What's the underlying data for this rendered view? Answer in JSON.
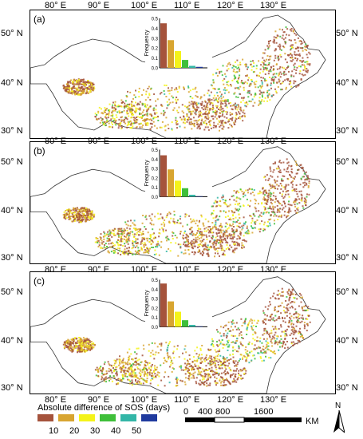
{
  "panels": [
    {
      "label": "(a)",
      "freq": [
        0.45,
        0.28,
        0.17,
        0.08,
        0.02,
        0.01
      ]
    },
    {
      "label": "(b)",
      "freq": [
        0.44,
        0.29,
        0.17,
        0.09,
        0.02,
        0.005
      ]
    },
    {
      "label": "(c)",
      "freq": [
        0.46,
        0.27,
        0.16,
        0.07,
        0.02,
        0.005
      ]
    }
  ],
  "lon_ticks": [
    "80° E",
    "90° E",
    "100° E",
    "110° E",
    "120° E",
    "130° E"
  ],
  "lat_ticks": [
    "50° N",
    "40° N",
    "30° N"
  ],
  "inset": {
    "ylabel": "Frequency",
    "yticks": [
      "0.5",
      "0.4",
      "0.3",
      "0.2",
      "0.1",
      "0.0"
    ]
  },
  "legend": {
    "title": "Absolute difference of SOS (days)",
    "values": [
      "10",
      "20",
      "30",
      "40",
      "50"
    ],
    "colors": [
      "#a5533c",
      "#d8a531",
      "#f4f31a",
      "#3fbf3a",
      "#33b6a7",
      "#1f3a9e"
    ]
  },
  "scale": {
    "labels": [
      "0",
      "400",
      "800",
      "1600"
    ],
    "unit": "KM"
  },
  "north": "N"
}
